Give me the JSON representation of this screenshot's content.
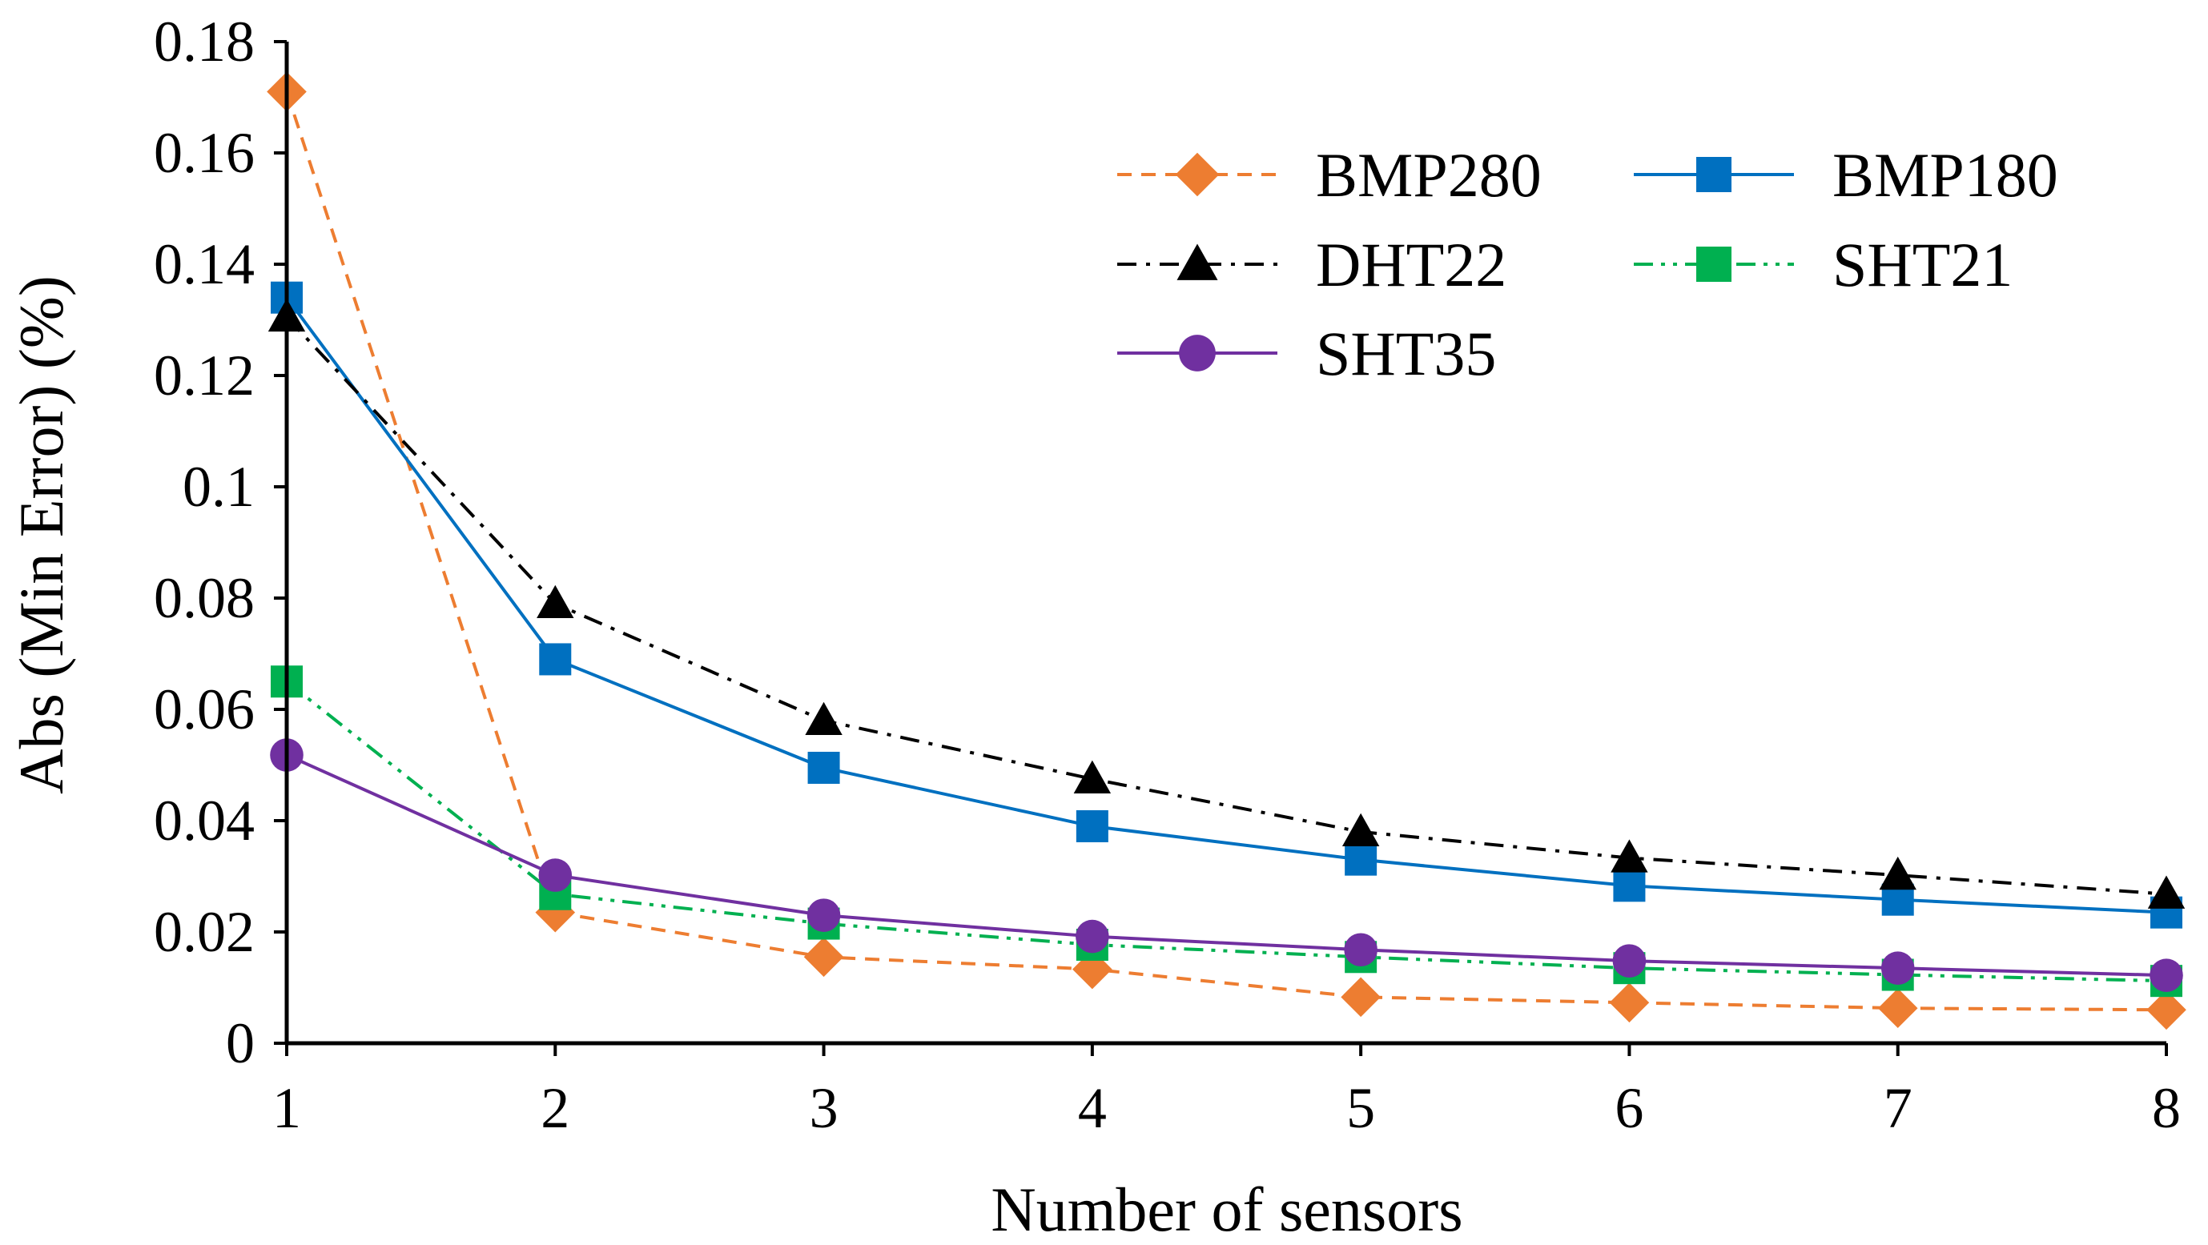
{
  "chart_data": {
    "type": "line",
    "title": "",
    "xlabel": "Number of sensors",
    "ylabel": "Abs (Min Error) (%)",
    "xlim": [
      1,
      8
    ],
    "ylim": [
      0,
      0.18
    ],
    "x": [
      1,
      2,
      3,
      4,
      5,
      6,
      7,
      8
    ],
    "x_tick_labels": [
      "1",
      "2",
      "3",
      "4",
      "5",
      "6",
      "7",
      "8"
    ],
    "y_ticks": [
      0,
      0.02,
      0.04,
      0.06,
      0.08,
      0.1,
      0.12,
      0.14,
      0.16,
      0.18
    ],
    "y_tick_labels": [
      "0",
      "0.02",
      "0.04",
      "0.06",
      "0.08",
      "0.1",
      "0.12",
      "0.14",
      "0.16",
      "0.18"
    ],
    "grid": false,
    "legend_position": "top-right",
    "series": [
      {
        "name": "BMP280",
        "values": [
          0.171,
          0.0235,
          0.0155,
          0.0133,
          0.0083,
          0.0073,
          0.0063,
          0.006
        ],
        "color": "#ED7D31",
        "line_style": "dashed",
        "marker": "diamond"
      },
      {
        "name": "BMP180",
        "values": [
          0.134,
          0.069,
          0.0495,
          0.039,
          0.033,
          0.0283,
          0.0258,
          0.0235
        ],
        "color": "#0070C0",
        "line_style": "solid",
        "marker": "square"
      },
      {
        "name": "DHT22",
        "values": [
          0.1305,
          0.079,
          0.058,
          0.0475,
          0.038,
          0.0333,
          0.0302,
          0.0268
        ],
        "color": "#000000",
        "line_style": "dash-dot",
        "marker": "triangle"
      },
      {
        "name": "SHT21",
        "values": [
          0.065,
          0.0268,
          0.0215,
          0.0177,
          0.0155,
          0.0135,
          0.0123,
          0.0112
        ],
        "color": "#00B050",
        "line_style": "dash-dot-dot",
        "marker": "square"
      },
      {
        "name": "SHT35",
        "values": [
          0.0518,
          0.0302,
          0.023,
          0.0192,
          0.0168,
          0.0148,
          0.0135,
          0.0122
        ],
        "color": "#7030A0",
        "line_style": "solid",
        "marker": "circle"
      }
    ]
  }
}
